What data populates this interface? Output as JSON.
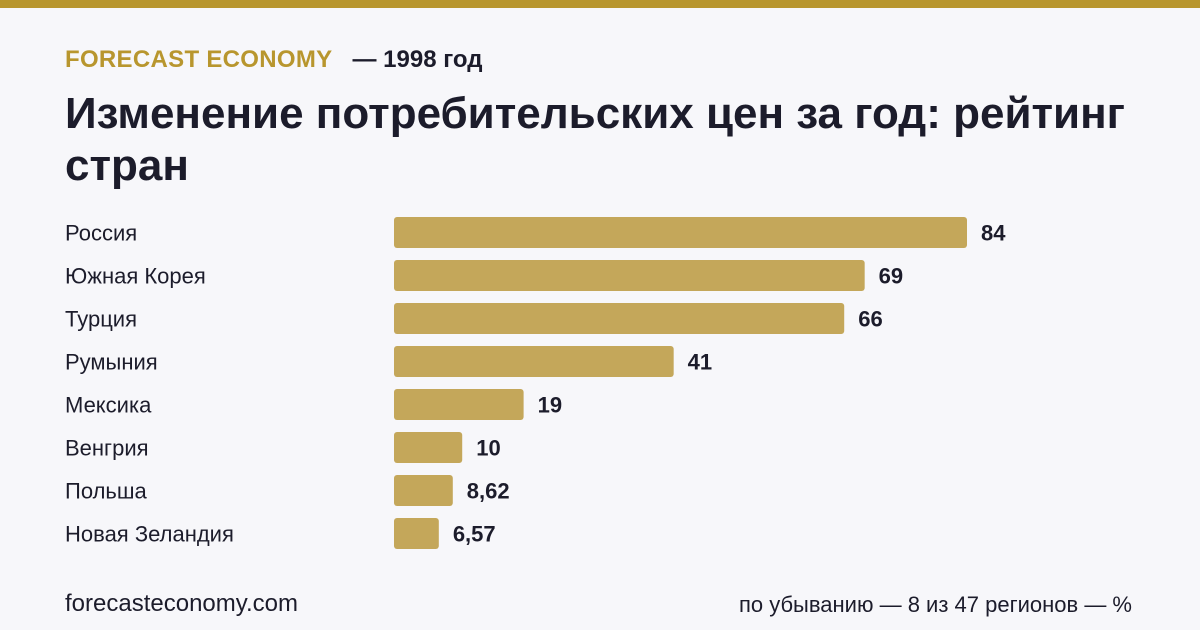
{
  "header": {
    "brand": "FORECAST ECONOMY",
    "year": "— 1998 год"
  },
  "title": "Изменение потребительских цен за год: рейтинг стран",
  "footer": {
    "site": "forecasteconomy.com",
    "note": "по убыванию — 8 из 47 регионов — %"
  },
  "colors": {
    "accent": "#b8962e",
    "bar": "#c4a75a",
    "text": "#1c1c2b",
    "background": "#f7f7fa"
  },
  "chart_data": {
    "type": "bar",
    "orientation": "horizontal",
    "categories": [
      "Россия",
      "Южная Корея",
      "Турция",
      "Румыния",
      "Мексика",
      "Венгрия",
      "Польша",
      "Новая Зеландия"
    ],
    "values": [
      84,
      69,
      66,
      41,
      19,
      10,
      8.62,
      6.57
    ],
    "value_labels": [
      "84",
      "69",
      "66",
      "41",
      "19",
      "10",
      "8,62",
      "6,57"
    ],
    "xlim": [
      0,
      84
    ],
    "grid": false,
    "legend": "none"
  }
}
